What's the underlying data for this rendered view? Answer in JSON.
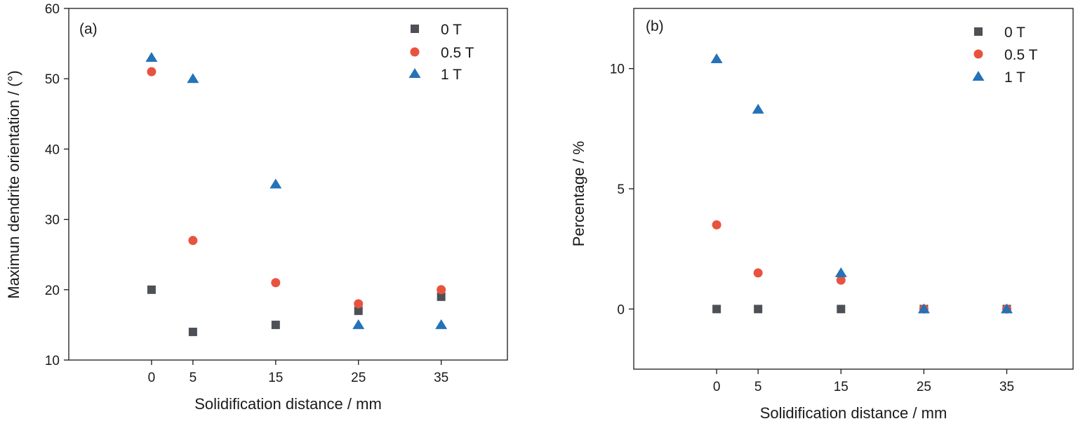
{
  "chart_data": [
    {
      "type": "scatter",
      "panel_label": "(a)",
      "xlabel": "Solidification distance / mm",
      "ylabel": "Maximun dendrite orientation / (°)",
      "xlim": [
        -10,
        43
      ],
      "ylim": [
        10,
        60
      ],
      "xticks": [
        0,
        5,
        15,
        25,
        35
      ],
      "yticks": [
        10,
        20,
        30,
        40,
        50,
        60
      ],
      "legend_position": "top-right",
      "series": [
        {
          "name": "0 T",
          "marker": "square",
          "color": "#4d5156",
          "points": [
            {
              "x": 0,
              "y": 20
            },
            {
              "x": 5,
              "y": 14
            },
            {
              "x": 15,
              "y": 15
            },
            {
              "x": 25,
              "y": 17
            },
            {
              "x": 35,
              "y": 19
            }
          ]
        },
        {
          "name": "0.5 T",
          "marker": "circle",
          "color": "#e8533f",
          "points": [
            {
              "x": 0,
              "y": 51
            },
            {
              "x": 5,
              "y": 27
            },
            {
              "x": 15,
              "y": 21
            },
            {
              "x": 25,
              "y": 18
            },
            {
              "x": 35,
              "y": 20
            }
          ]
        },
        {
          "name": "1 T",
          "marker": "triangle",
          "color": "#2472b8",
          "points": [
            {
              "x": 0,
              "y": 53
            },
            {
              "x": 5,
              "y": 50
            },
            {
              "x": 15,
              "y": 35
            },
            {
              "x": 25,
              "y": 15
            },
            {
              "x": 35,
              "y": 15
            }
          ]
        }
      ]
    },
    {
      "type": "scatter",
      "panel_label": "(b)",
      "xlabel": "Solidification distance / mm",
      "ylabel": "Percentage / %",
      "xlim": [
        -10,
        43
      ],
      "ylim": [
        -2.5,
        12.5
      ],
      "xticks": [
        0,
        5,
        15,
        25,
        35
      ],
      "yticks": [
        0,
        5,
        10
      ],
      "legend_position": "top-right",
      "series": [
        {
          "name": "0 T",
          "marker": "square",
          "color": "#4d5156",
          "points": [
            {
              "x": 0,
              "y": 0
            },
            {
              "x": 5,
              "y": 0
            },
            {
              "x": 15,
              "y": 0
            },
            {
              "x": 25,
              "y": 0
            },
            {
              "x": 35,
              "y": 0
            }
          ]
        },
        {
          "name": "0.5 T",
          "marker": "circle",
          "color": "#e8533f",
          "points": [
            {
              "x": 0,
              "y": 3.5
            },
            {
              "x": 5,
              "y": 1.5
            },
            {
              "x": 15,
              "y": 1.2
            },
            {
              "x": 25,
              "y": 0
            },
            {
              "x": 35,
              "y": 0
            }
          ]
        },
        {
          "name": "1 T",
          "marker": "triangle",
          "color": "#2472b8",
          "points": [
            {
              "x": 0,
              "y": 10.4
            },
            {
              "x": 5,
              "y": 8.3
            },
            {
              "x": 15,
              "y": 1.5
            },
            {
              "x": 25,
              "y": 0
            },
            {
              "x": 35,
              "y": 0
            }
          ]
        }
      ]
    }
  ]
}
